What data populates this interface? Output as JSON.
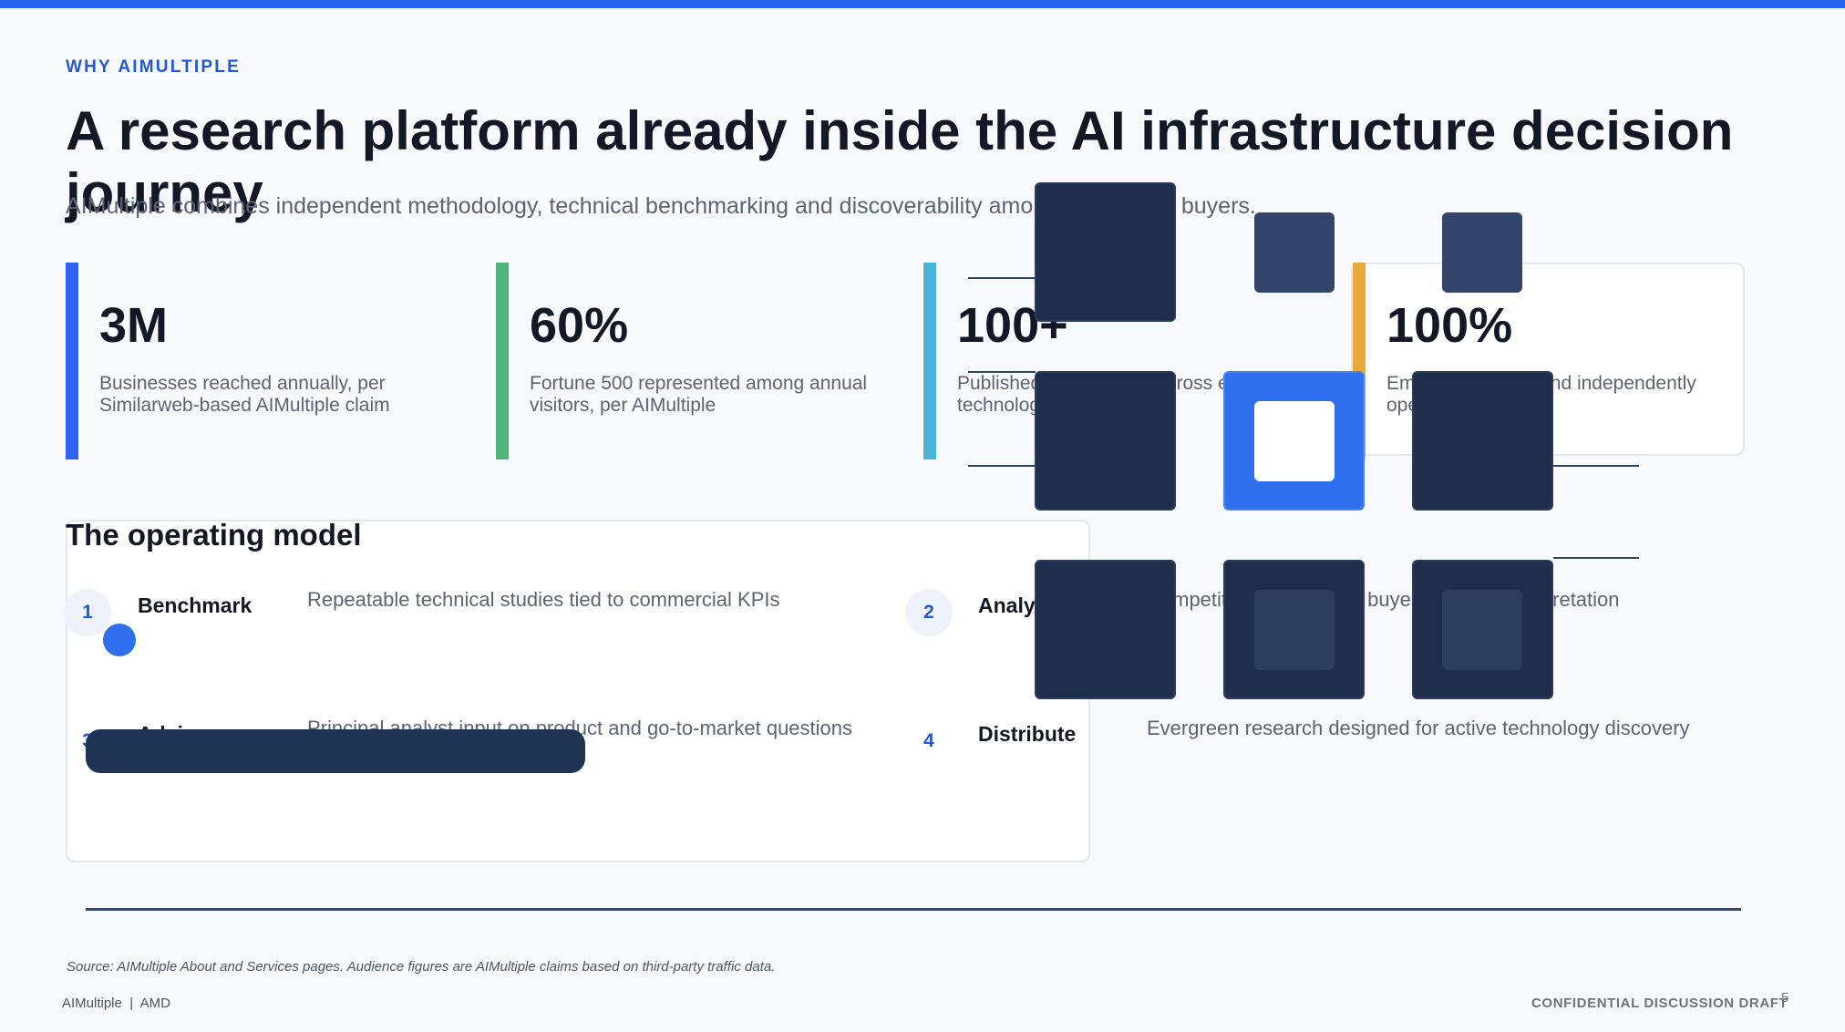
{
  "header": {
    "eyebrow": "WHY AIMULTIPLE",
    "title": "A research platform already inside the AI infrastructure decision journey",
    "subtitle": "AIMultiple combines independent methodology, technical benchmarking and discoverability among technology buyers."
  },
  "stats": [
    {
      "value": "3M",
      "desc": "Businesses reached annually, per Similarweb-based AIMultiple claim",
      "color": "#2f62f0"
    },
    {
      "value": "60%",
      "desc": "Fortune 500 represented among annual visitors, per AIMultiple",
      "color": "#4fb37a"
    },
    {
      "value": "100+",
      "desc": "Published benchmarks across enterprise technology space",
      "color": "#4bb3d6"
    },
    {
      "value": "100%",
      "desc": "Employee-owned and independently operated",
      "color": "#e8a93a"
    }
  ],
  "model": {
    "title": "The operating model",
    "steps": [
      {
        "num": "1",
        "label": "Benchmark",
        "desc": "Repeatable technical studies tied to commercial KPIs"
      },
      {
        "num": "2",
        "label": "Analyze",
        "desc": "Competitive context and buyer-oriented interpretation"
      },
      {
        "num": "3",
        "label": "Advise",
        "desc": "Principal analyst input on product and go-to-market questions"
      },
      {
        "num": "4",
        "label": "Distribute",
        "desc": "Evergreen research designed for active technology discovery"
      }
    ]
  },
  "footer": {
    "source": "Source: AIMultiple About and Services pages. Audience figures are AIMultiple claims based on third-party traffic data.",
    "left": "AIMultiple  |  AMD",
    "right": "CONFIDENTIAL DISCUSSION DRAFT",
    "page": "5"
  }
}
